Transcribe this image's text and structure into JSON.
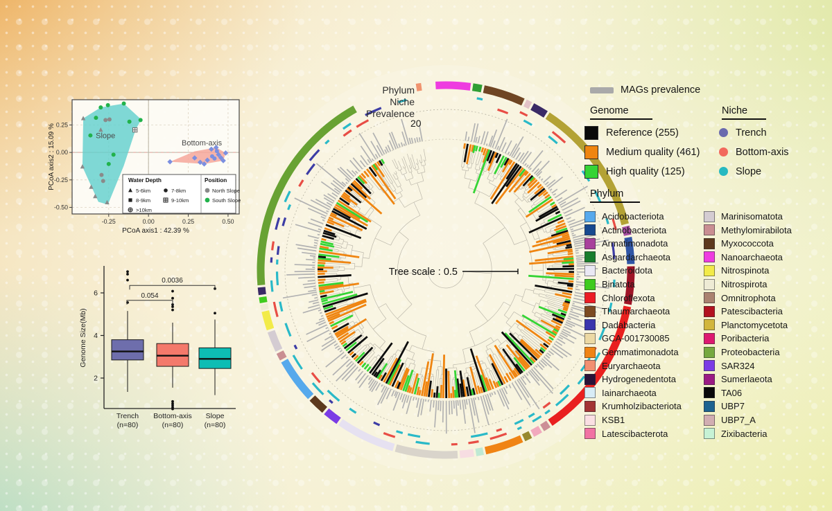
{
  "ring_area_labels": {
    "phylum": "Phylum",
    "niche": "Niche",
    "prevalence": "Prevalence",
    "prevalence_value": "20"
  },
  "legends": {
    "mags_prevalence": "MAGs prevalence",
    "genome": {
      "title": "Genome",
      "items": [
        {
          "label": "Reference (255)",
          "color": "#0a0a0a"
        },
        {
          "label": "Medium quality (461)",
          "color": "#ef8511"
        },
        {
          "label": "High quality (125)",
          "color": "#35d435"
        }
      ]
    },
    "niche": {
      "title": "Niche",
      "items": [
        {
          "label": "Trench",
          "color": "#6a6aad"
        },
        {
          "label": "Bottom-axis",
          "color": "#f2695c"
        },
        {
          "label": "Slope",
          "color": "#27b9c0"
        }
      ]
    },
    "phylum": {
      "title": "Phylum",
      "col1": [
        {
          "label": "Acidobacteriota",
          "color": "#56a9ec"
        },
        {
          "label": "Actinobacteriota",
          "color": "#17498f"
        },
        {
          "label": "Armatimonadota",
          "color": "#a8409c"
        },
        {
          "label": "Asgardarchaeota",
          "color": "#187d2c"
        },
        {
          "label": "Bacteroidota",
          "color": "#eae8f4"
        },
        {
          "label": "Binatota",
          "color": "#3fcb1e"
        },
        {
          "label": "Chloroflexota",
          "color": "#ec1c24"
        },
        {
          "label": "Thaumarchaeota",
          "color": "#7c4a21"
        },
        {
          "label": "Dadabacteria",
          "color": "#3b35ad"
        },
        {
          "label": "GCA-001730085",
          "color": "#ecd9a4"
        },
        {
          "label": "Gemmatimonadota",
          "color": "#f08414"
        },
        {
          "label": "Euryarchaeota",
          "color": "#f29070"
        },
        {
          "label": "Hydrogenedentota",
          "color": "#2a1238"
        },
        {
          "label": "Iainarchaeota",
          "color": "#d8ecf6"
        },
        {
          "label": "Krumholzibacteriota",
          "color": "#a33434"
        },
        {
          "label": "KSB1",
          "color": "#fadfe3"
        },
        {
          "label": "Latescibacterota",
          "color": "#f172a3"
        }
      ],
      "col2": [
        {
          "label": "Marinisomatota",
          "color": "#d4ccd2"
        },
        {
          "label": "Methylomirabilota",
          "color": "#c98e92"
        },
        {
          "label": "Myxococcota",
          "color": "#5d391d"
        },
        {
          "label": "Nanoarchaeota",
          "color": "#ee3ce0"
        },
        {
          "label": "Nitrospinota",
          "color": "#f2eb49"
        },
        {
          "label": "Nitrospirota",
          "color": "#eeebd5"
        },
        {
          "label": "Omnitrophota",
          "color": "#aa8270"
        },
        {
          "label": "Patescibacteria",
          "color": "#b2121f"
        },
        {
          "label": "Planctomycetota",
          "color": "#d2b63c"
        },
        {
          "label": "Poribacteria",
          "color": "#dd1970"
        },
        {
          "label": "Proteobacteria",
          "color": "#76a83f"
        },
        {
          "label": "SAR324",
          "color": "#7b3ce5"
        },
        {
          "label": "Sumerlaeota",
          "color": "#9b1b85"
        },
        {
          "label": "TA06",
          "color": "#0a0a0a"
        },
        {
          "label": "UBP7",
          "color": "#1d6390"
        },
        {
          "label": "UBP7_A",
          "color": "#d1aeb2"
        },
        {
          "label": "Zixibacteria",
          "color": "#c6f2d5"
        }
      ]
    }
  },
  "chart_data": [
    {
      "type": "scatter",
      "name": "pcoa",
      "xlabel": "PCoA axis1 : 42.39 %",
      "ylabel": "PCoA axis2 : 15.09 %",
      "xticks": [
        -0.25,
        0.0,
        0.25,
        0.5
      ],
      "yticks": [
        -0.5,
        -0.25,
        0.0,
        0.25
      ],
      "xlim": [
        -0.48,
        0.57
      ],
      "ylim": [
        -0.56,
        0.48
      ],
      "clusters": [
        {
          "label": "Slope",
          "color": "#5fd0cd",
          "fill_opacity": 0.8,
          "label_pos": [
            -0.27,
            0.13
          ],
          "polygon": [
            [
              -0.41,
              0.31
            ],
            [
              -0.3,
              0.41
            ],
            [
              -0.155,
              0.445
            ],
            [
              -0.045,
              0.3
            ],
            [
              -0.08,
              0.21
            ],
            [
              -0.155,
              -0.12
            ],
            [
              -0.255,
              -0.475
            ],
            [
              -0.315,
              -0.45
            ],
            [
              -0.415,
              -0.13
            ]
          ]
        },
        {
          "label": "Bottom-axis",
          "color": "#f6a79b",
          "fill_opacity": 0.85,
          "label_pos": [
            0.335,
            0.065
          ],
          "polygon": [
            [
              0.135,
              -0.085
            ],
            [
              0.29,
              0.01
            ],
            [
              0.425,
              0.045
            ],
            [
              0.485,
              -0.005
            ],
            [
              0.47,
              -0.075
            ],
            [
              0.35,
              -0.105
            ]
          ]
        }
      ],
      "points": [
        {
          "x": -0.33,
          "y": 0.315,
          "shape": "circle",
          "color": "#21b24b"
        },
        {
          "x": -0.3,
          "y": 0.41,
          "shape": "circle",
          "color": "#21b24b"
        },
        {
          "x": -0.255,
          "y": 0.43,
          "shape": "circle",
          "color": "#21b24b"
        },
        {
          "x": -0.155,
          "y": 0.445,
          "shape": "circle",
          "color": "#21b24b"
        },
        {
          "x": -0.05,
          "y": 0.295,
          "shape": "circle",
          "color": "#21b24b"
        },
        {
          "x": -0.365,
          "y": 0.155,
          "shape": "circle",
          "color": "#21b24b"
        },
        {
          "x": -0.12,
          "y": 0.28,
          "shape": "circle",
          "color": "#21b24b"
        },
        {
          "x": -0.22,
          "y": -0.02,
          "shape": "circle",
          "color": "#21b24b"
        },
        {
          "x": -0.25,
          "y": -0.105,
          "shape": "circle",
          "color": "#21b24b"
        },
        {
          "x": -0.27,
          "y": 0.295,
          "shape": "circle",
          "color": "#8a8a8a"
        },
        {
          "x": -0.245,
          "y": 0.3,
          "shape": "circle",
          "color": "#8a8a8a"
        },
        {
          "x": -0.295,
          "y": -0.205,
          "shape": "circle",
          "color": "#8a8a8a"
        },
        {
          "x": -0.285,
          "y": -0.26,
          "shape": "circle",
          "color": "#8a8a8a"
        },
        {
          "x": -0.3,
          "y": 0.205,
          "shape": "triangle",
          "color": "#8a8a8a"
        },
        {
          "x": -0.41,
          "y": 0.31,
          "shape": "triangle",
          "color": "#8a8a8a"
        },
        {
          "x": -0.415,
          "y": -0.13,
          "shape": "triangle",
          "color": "#8a8a8a"
        },
        {
          "x": -0.36,
          "y": -0.315,
          "shape": "triangle",
          "color": "#8a8a8a"
        },
        {
          "x": -0.335,
          "y": -0.4,
          "shape": "triangle",
          "color": "#8a8a8a"
        },
        {
          "x": -0.26,
          "y": -0.455,
          "shape": "triangle",
          "color": "#8a8a8a"
        },
        {
          "x": -0.085,
          "y": 0.205,
          "shape": "crossed-square",
          "color": "#6a6a6a"
        },
        {
          "x": 0.135,
          "y": -0.085,
          "shape": "diamond",
          "color": "#7b8fe0"
        },
        {
          "x": 0.29,
          "y": -0.05,
          "shape": "diamond",
          "color": "#7b8fe0"
        },
        {
          "x": 0.325,
          "y": -0.09,
          "shape": "diamond",
          "color": "#7b8fe0"
        },
        {
          "x": 0.35,
          "y": -0.105,
          "shape": "diamond",
          "color": "#7b8fe0"
        },
        {
          "x": 0.395,
          "y": 0.03,
          "shape": "diamond",
          "color": "#7b8fe0"
        },
        {
          "x": 0.425,
          "y": 0.045,
          "shape": "diamond",
          "color": "#7b8fe0"
        },
        {
          "x": 0.44,
          "y": -0.02,
          "shape": "diamond",
          "color": "#7b8fe0"
        },
        {
          "x": 0.455,
          "y": -0.048,
          "shape": "diamond",
          "color": "#7b8fe0"
        },
        {
          "x": 0.485,
          "y": -0.005,
          "shape": "diamond",
          "color": "#7b8fe0"
        },
        {
          "x": 0.47,
          "y": -0.075,
          "shape": "diamond",
          "color": "#7b8fe0"
        },
        {
          "x": 0.415,
          "y": -0.055,
          "shape": "circle",
          "color": "#7b8fe0"
        },
        {
          "x": 0.43,
          "y": 0.012,
          "shape": "circle",
          "color": "#7b8fe0"
        },
        {
          "x": 0.4,
          "y": -0.035,
          "shape": "circle",
          "color": "#7b8fe0"
        },
        {
          "x": 0.37,
          "y": -0.07,
          "shape": "diamond",
          "color": "#7b8fe0"
        }
      ],
      "legend": {
        "water_depth_title": "Water Depth",
        "water_depth": [
          {
            "shape": "triangle",
            "label": "5-6km"
          },
          {
            "shape": "circle",
            "label": "7-8km"
          },
          {
            "shape": "square",
            "label": "8-9km"
          },
          {
            "shape": "crossed-square",
            "label": "9-10km"
          },
          {
            "shape": "crossed-circle",
            "label": ">10km"
          }
        ],
        "position_title": "Position",
        "position": [
          {
            "color": "#8a8a8a",
            "label": "North Slope"
          },
          {
            "color": "#21b24b",
            "label": "South Slope"
          }
        ]
      }
    },
    {
      "type": "box",
      "name": "genome-size-boxplot",
      "ylabel": "Genome Size(Mb)",
      "yticks": [
        2,
        4,
        6
      ],
      "ylim": [
        0.4,
        7.6
      ],
      "categories": [
        "Trench",
        "Bottom-axis",
        "Slope"
      ],
      "n_labels": [
        "(n=80)",
        "(n=80)",
        "(n=80)"
      ],
      "colors": [
        "#6e6eac",
        "#f4796b",
        "#0dbdb4"
      ],
      "stats": [
        {
          "lo": 1.35,
          "q1": 2.85,
          "med": 3.25,
          "q3": 3.8,
          "hi": 5.15,
          "outliers": [
            7.0,
            6.88,
            6.6,
            5.55
          ]
        },
        {
          "lo": 1.55,
          "q1": 2.55,
          "med": 3.05,
          "q3": 3.62,
          "hi": 4.6,
          "outliers": [
            6.08,
            5.75,
            5.45,
            5.35,
            5.2,
            0.9,
            0.8,
            0.72,
            0.63,
            0.55
          ]
        },
        {
          "lo": 1.2,
          "q1": 2.45,
          "med": 2.9,
          "q3": 3.42,
          "hi": 4.75,
          "outliers": [
            6.2,
            5.05
          ]
        }
      ],
      "comparisons": [
        {
          "a": 0,
          "b": 1,
          "label": "0.054",
          "y": 5.65
        },
        {
          "a": 0,
          "b": 2,
          "label": "0.0036",
          "y": 6.35
        }
      ]
    },
    {
      "type": "circular-phylogeny",
      "name": "mags-tree",
      "tree_scale_label": "Tree scale : 0.5",
      "prevalence_axis_max": 20,
      "bars_span": [
        8,
        330
      ],
      "genome_quality": [
        {
          "label": "Medium quality (461)",
          "color": "#ef8511",
          "weight": 0.55
        },
        {
          "label": "Reference (255)",
          "color": "#0d0d0d",
          "weight": 0.3
        },
        {
          "label": "High quality (125)",
          "color": "#35d435",
          "weight": 0.15
        }
      ],
      "niche_colors": [
        "#29b9c8",
        "#e84d45",
        "#3d3da5"
      ],
      "phylum_ring": [
        {
          "a0": 350.5,
          "a1": 352.8,
          "color": "#f0936e"
        },
        {
          "a0": 356.5,
          "a1": 368.0,
          "color": "#ee3ce0"
        },
        {
          "a0": 368.0,
          "a1": 371.5,
          "color": "#2f9e33"
        },
        {
          "a0": 371.5,
          "a1": 385.0,
          "color": "#6f4523"
        },
        {
          "a0": 385.0,
          "a1": 387.5,
          "color": "#e3c3c8"
        },
        {
          "a0": 387.5,
          "a1": 393.0,
          "color": "#3a2a66"
        },
        {
          "a0": 393.0,
          "a1": 436.0,
          "color": "#b3a235"
        },
        {
          "a0": 436.0,
          "a1": 439.5,
          "color": "#a44da0"
        },
        {
          "a0": 439.5,
          "a1": 448.5,
          "color": "#2f55a5"
        },
        {
          "a0": 448.5,
          "a1": 461.0,
          "color": "#9e1426"
        },
        {
          "a0": 461.0,
          "a1": 506.0,
          "color": "#e9201f"
        },
        {
          "a0": 506.0,
          "a1": 509.0,
          "color": "#cc8f96"
        },
        {
          "a0": 509.0,
          "a1": 512.5,
          "color": "#f2a9bd"
        },
        {
          "a0": 512.5,
          "a1": 515.5,
          "color": "#97892e"
        },
        {
          "a0": 515.5,
          "a1": 528.0,
          "color": "#f08414"
        },
        {
          "a0": 528.0,
          "a1": 531.0,
          "color": "#bfe9d4"
        },
        {
          "a0": 531.0,
          "a1": 536.0,
          "color": "#f7dde2"
        },
        {
          "a0": 536.0,
          "a1": 556.0,
          "color": "#d9d4cb"
        },
        {
          "a0": 556.0,
          "a1": 575.0,
          "color": "#e6e1f1"
        },
        {
          "a0": 575.0,
          "a1": 580.5,
          "color": "#7b3ce5"
        },
        {
          "a0": 580.5,
          "a1": 586.5,
          "color": "#5d391d"
        },
        {
          "a0": 586.5,
          "a1": 601.0,
          "color": "#56a9ec"
        },
        {
          "a0": 601.0,
          "a1": 604.0,
          "color": "#c98e92"
        },
        {
          "a0": 604.0,
          "a1": 611.0,
          "color": "#d4ccd2"
        },
        {
          "a0": 611.0,
          "a1": 617.5,
          "color": "#f2eb49"
        },
        {
          "a0": 617.5,
          "a1": 619.5,
          "color": "#eeebd5"
        },
        {
          "a0": 619.5,
          "a1": 622.0,
          "color": "#3fcb1e"
        },
        {
          "a0": 622.0,
          "a1": 625.0,
          "color": "#3a2a66"
        },
        {
          "a0": 625.0,
          "a1": 691.0,
          "color": "#68a233"
        }
      ]
    }
  ]
}
